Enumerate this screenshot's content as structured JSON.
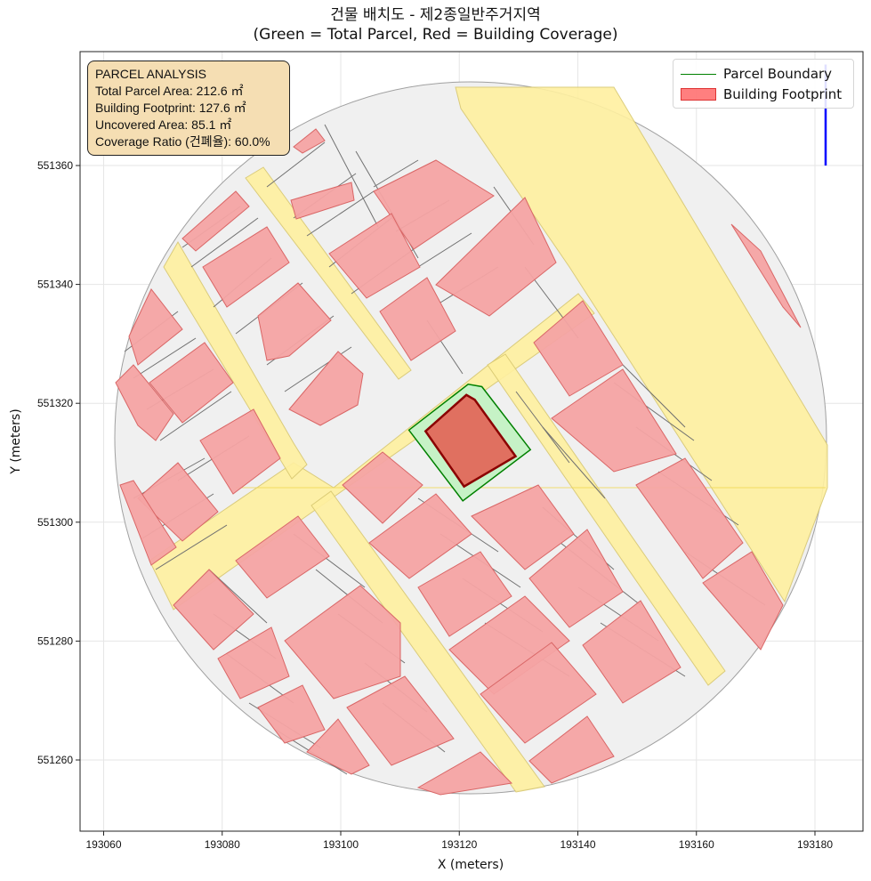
{
  "title": {
    "line1": "건물 배치도 - 제2종일반주거지역",
    "line2": "(Green = Total Parcel, Red = Building Coverage)"
  },
  "info_box": {
    "heading": "PARCEL ANALYSIS",
    "total_parcel_area": "Total Parcel Area: 212.6 ㎡",
    "building_footprint": "Building Footprint: 127.6 ㎡",
    "uncovered_area": "Uncovered Area: 85.1 ㎡",
    "coverage_ratio": "Coverage Ratio (건폐율): 60.0%"
  },
  "legend": {
    "items": [
      {
        "label": "Parcel Boundary",
        "kind": "line",
        "color": "#008000"
      },
      {
        "label": "Building Footprint",
        "kind": "patch",
        "color": "#ff7f7f"
      }
    ],
    "placement": "top-right"
  },
  "colors": {
    "road": "#fff0a0",
    "other_parcel": "#f0f0f0",
    "other_building": "#f4a3a3",
    "target_parcel_fill": "#c6f2c6",
    "target_parcel_edge": "#008000",
    "target_building_fill": "#e07060",
    "target_building_edge": "#8b0000",
    "north_arrow": "#0000ff"
  },
  "chart_data": {
    "type": "map",
    "xlabel": "X (meters)",
    "ylabel": "Y (meters)",
    "xlim": [
      193058,
      193188
    ],
    "ylim": [
      551248,
      551379
    ],
    "xticks": [
      193060,
      193080,
      193100,
      193120,
      193140,
      193160,
      193180
    ],
    "yticks": [
      551260,
      551280,
      551300,
      551320,
      551340,
      551360
    ],
    "grid": true,
    "target_parcel": {
      "outline": [
        [
          193111.5,
          551315.5
        ],
        [
          193121.5,
          551323.2
        ],
        [
          193123.8,
          551322.8
        ],
        [
          193132.0,
          551312.2
        ],
        [
          193120.6,
          551303.6
        ]
      ],
      "area_m2": 212.6
    },
    "target_building": {
      "outline": [
        [
          193114.3,
          551315.3
        ],
        [
          193121.2,
          551321.4
        ],
        [
          193122.6,
          551320.6
        ],
        [
          193129.5,
          551311.1
        ],
        [
          193120.8,
          551306.0
        ]
      ],
      "area_m2": 127.6
    },
    "coverage_ratio_pct": 60.0,
    "north_arrow": {
      "x": 193181.8,
      "y_from": 551360,
      "y_to": 551377
    }
  }
}
